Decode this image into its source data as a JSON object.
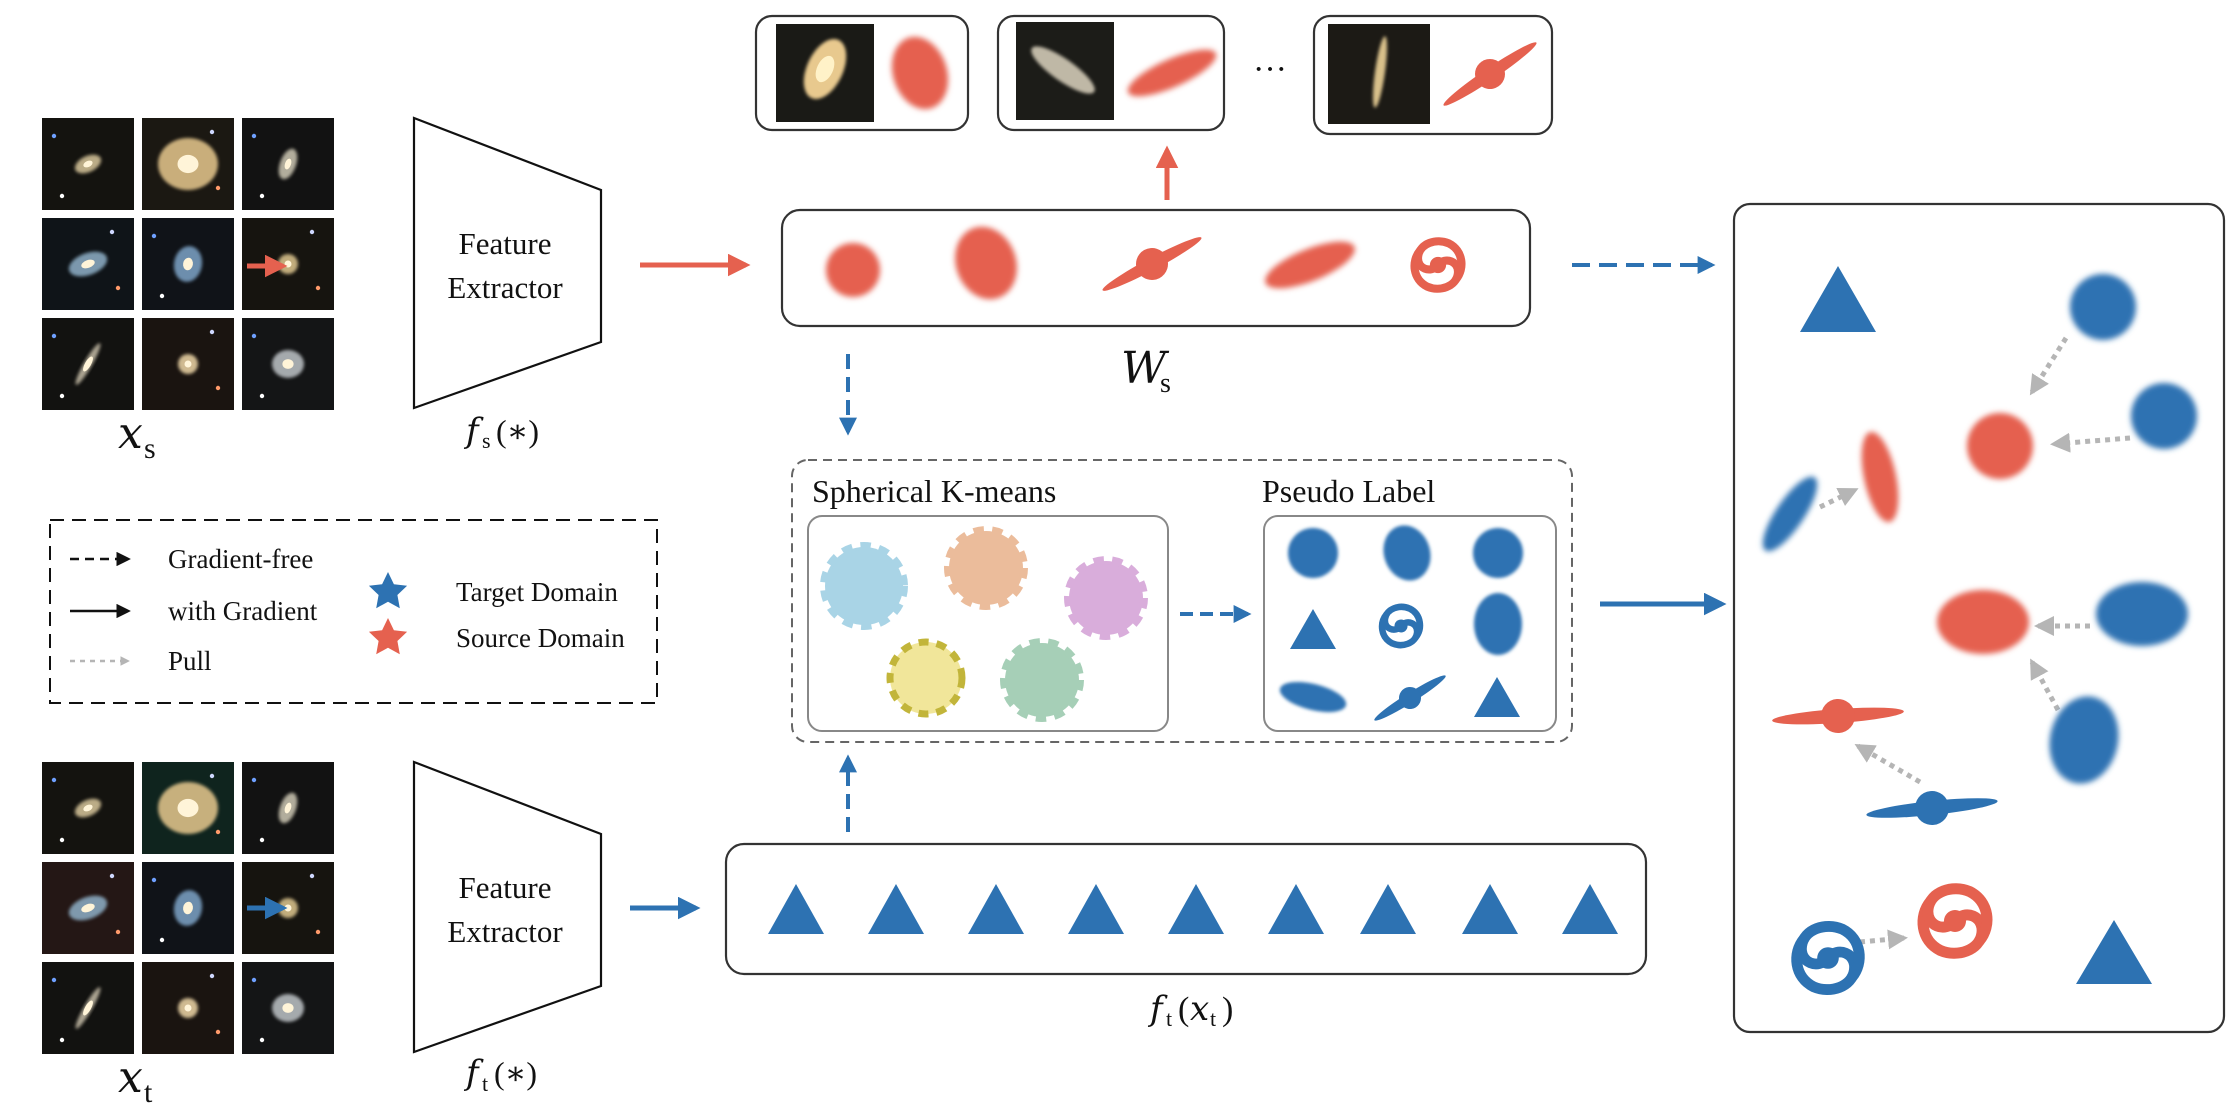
{
  "source_images_label": "x",
  "source_images_subscript": "s",
  "target_images_label": "x",
  "target_images_subscript": "t",
  "feature_extractor_label_line1": "Feature",
  "feature_extractor_label_line2": "Extractor",
  "source_extractor_fn": "f",
  "source_extractor_sub": "s",
  "source_extractor_arg": "(∗)",
  "target_extractor_fn": "f",
  "target_extractor_sub": "t",
  "target_extractor_arg": "(∗)",
  "prototype_label": "W",
  "prototype_sub": "s",
  "target_feature_fn": "f",
  "target_feature_sub": "t",
  "target_feature_arg_open": "(",
  "target_feature_arg_x": "x",
  "target_feature_arg_sub": "t",
  "target_feature_arg_close": ")",
  "ellipsis": "···",
  "kmeans_title": "Spherical K-means",
  "pseudo_title": "Pseudo Label",
  "legend": {
    "gradient_free": "Gradient-free",
    "with_gradient": "with Gradient",
    "pull": "Pull",
    "target_domain": "Target Domain",
    "source_domain": "Source Domain"
  },
  "colors": {
    "source_red": "#e5614f",
    "target_blue": "#2d72b2",
    "pull_gray": "#b5b5b5",
    "cluster_blue": "#a9d4e6",
    "cluster_orange": "#ebbc9b",
    "cluster_purple": "#d9addb",
    "cluster_yellow": "#f1e69a",
    "cluster_green": "#a6cfb7"
  }
}
